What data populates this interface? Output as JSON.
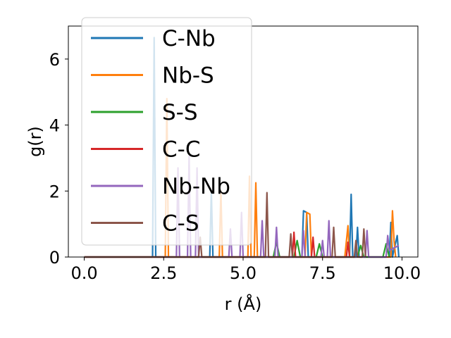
{
  "chart_data": {
    "type": "line",
    "xlabel": "r (Å)",
    "ylabel": "g(r)",
    "xlim": [
      -0.5,
      10.5
    ],
    "ylim": [
      0,
      7
    ],
    "xticks": [
      "0.0",
      "2.5",
      "5.0",
      "7.5",
      "10.0"
    ],
    "xtick_values": [
      0,
      2.5,
      5,
      7.5,
      10
    ],
    "yticks": [
      "0",
      "2",
      "4",
      "6"
    ],
    "ytick_values": [
      0,
      2,
      4,
      6
    ],
    "legend_position": "upper-left",
    "grid": false,
    "series": [
      {
        "name": "C-Nb",
        "color": "#1f77b4",
        "x": [
          0,
          2.1,
          2.15,
          2.2,
          2.25,
          2.3,
          3.95,
          4.0,
          4.05,
          6.85,
          6.9,
          7.0,
          7.05,
          8.35,
          8.4,
          8.45,
          8.55,
          8.6,
          8.65,
          9.6,
          9.65,
          9.7,
          9.85,
          9.9
        ],
        "values": [
          0,
          0,
          0,
          6.65,
          0,
          0,
          0,
          2.0,
          0,
          0,
          1.4,
          1.35,
          0,
          0,
          1.9,
          0,
          0,
          0.9,
          0,
          0,
          1.05,
          0,
          0.65,
          0
        ]
      },
      {
        "name": "Nb-S",
        "color": "#ff7f0e",
        "x": [
          0,
          2.55,
          2.6,
          2.65,
          4.25,
          4.3,
          4.35,
          5.15,
          5.2,
          5.25,
          5.35,
          5.4,
          5.45,
          6.95,
          7.0,
          7.1,
          7.15,
          8.2,
          8.3,
          8.35,
          9.65,
          9.7,
          9.75,
          9.8
        ],
        "values": [
          0,
          0,
          4.8,
          0,
          0,
          2.0,
          0,
          0,
          2.45,
          0,
          0,
          2.25,
          0,
          0,
          1.35,
          1.3,
          0,
          0,
          0.95,
          0,
          0,
          1.4,
          0.5,
          0
        ]
      },
      {
        "name": "S-S",
        "color": "#2ca02c",
        "x": [
          0,
          5.95,
          6.05,
          6.15,
          6.6,
          6.7,
          6.8,
          7.3,
          7.4,
          7.5,
          8.6,
          8.7,
          8.8,
          9.4,
          9.5,
          9.6
        ],
        "values": [
          0,
          0,
          0.45,
          0,
          0,
          0.5,
          0,
          0,
          0.4,
          0,
          0,
          0.35,
          0,
          0,
          0.4,
          0
        ]
      },
      {
        "name": "C-C",
        "color": "#d62728",
        "x": [
          0,
          6.55,
          6.6,
          6.65,
          7.15,
          7.2,
          7.25,
          8.25,
          8.3,
          8.35
        ],
        "values": [
          0,
          0,
          0.75,
          0,
          0,
          0.6,
          0,
          0,
          0.45,
          0
        ]
      },
      {
        "name": "Nb-Nb",
        "color": "#9467bd",
        "x": [
          0,
          2.9,
          2.95,
          3.0,
          3.25,
          3.3,
          3.35,
          3.5,
          3.55,
          3.6,
          4.55,
          4.6,
          4.65,
          4.9,
          4.95,
          5.0,
          5.55,
          5.6,
          5.65,
          6.0,
          6.05,
          6.1,
          6.85,
          6.9,
          6.95,
          7.45,
          7.5,
          7.55,
          7.65,
          7.7,
          7.75,
          8.85,
          8.9,
          8.95,
          9.5,
          9.55,
          9.6,
          9.9
        ],
        "values": [
          0,
          0,
          2.7,
          0,
          0,
          3.05,
          0,
          0,
          2.7,
          0,
          0,
          0.85,
          0,
          0,
          1.35,
          0,
          0,
          1.1,
          0,
          0,
          0.9,
          0,
          0,
          0.8,
          0,
          0,
          0.5,
          0,
          0,
          1.1,
          0,
          0,
          0.8,
          0,
          0,
          0.65,
          0.2,
          0.35
        ]
      },
      {
        "name": "C-S",
        "color": "#8c564b",
        "x": [
          0,
          3.6,
          3.65,
          3.7,
          5.7,
          5.75,
          5.8,
          6.45,
          6.5,
          6.55,
          7.8,
          7.85,
          7.9,
          8.5,
          8.55,
          8.6,
          8.75,
          8.8,
          8.85
        ],
        "values": [
          0,
          0,
          0.6,
          0,
          0,
          1.95,
          0,
          0,
          0.7,
          0,
          0,
          0.9,
          0,
          0,
          0.5,
          0,
          0,
          0.85,
          0
        ]
      }
    ]
  }
}
